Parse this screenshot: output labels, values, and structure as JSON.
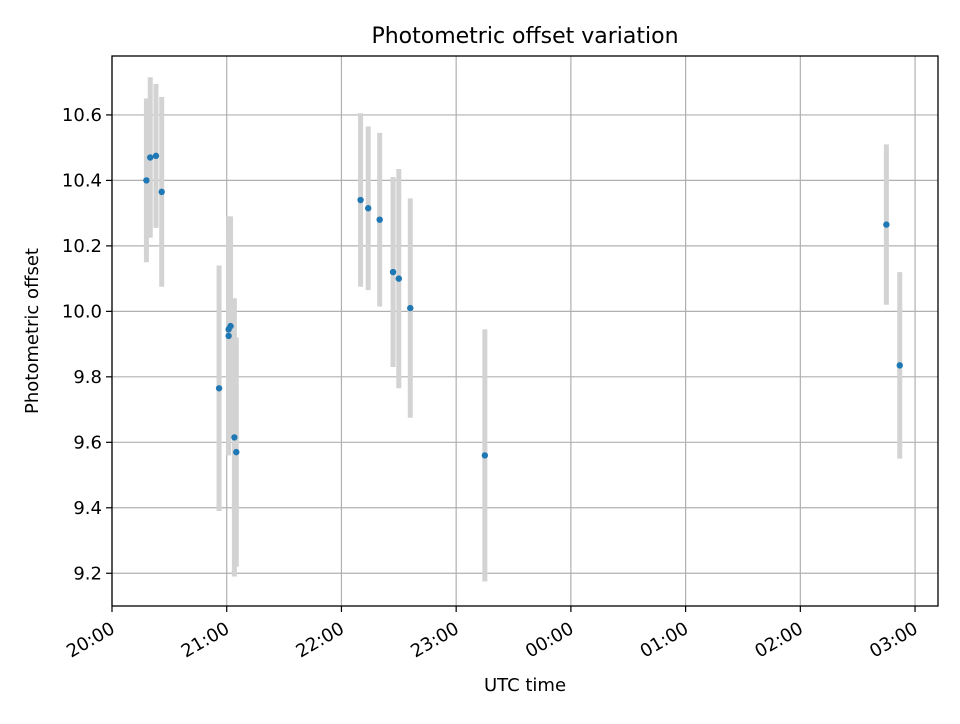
{
  "chart_data": {
    "type": "scatter",
    "title": "Photometric offset variation",
    "xlabel": "UTC time",
    "ylabel": "Photometric offset",
    "xlim": [
      "20:00",
      "03:12"
    ],
    "ylim": [
      9.1,
      10.78
    ],
    "grid": true,
    "x_ticks": [
      "20:00",
      "21:00",
      "22:00",
      "23:00",
      "00:00",
      "01:00",
      "02:00",
      "03:00"
    ],
    "y_ticks": [
      "9.2",
      "9.4",
      "9.6",
      "9.8",
      "10.0",
      "10.2",
      "10.4",
      "10.6"
    ],
    "point_color": "#1f77b4",
    "errorbar_color": "#d3d3d3",
    "points": [
      {
        "t": "20:18",
        "y": 10.4,
        "err": 0.25
      },
      {
        "t": "20:20",
        "y": 10.47,
        "err": 0.245
      },
      {
        "t": "20:23",
        "y": 10.475,
        "err": 0.22
      },
      {
        "t": "20:26",
        "y": 10.365,
        "err": 0.29
      },
      {
        "t": "20:56",
        "y": 9.765,
        "err": 0.375
      },
      {
        "t": "21:01",
        "y": 9.945,
        "err": 0.31
      },
      {
        "t": "21:01",
        "y": 9.925,
        "err": 0.365
      },
      {
        "t": "21:02",
        "y": 9.955,
        "err": 0.335
      },
      {
        "t": "21:04",
        "y": 9.615,
        "err": 0.425
      },
      {
        "t": "21:05",
        "y": 9.57,
        "err": 0.35
      },
      {
        "t": "22:10",
        "y": 10.34,
        "err": 0.265
      },
      {
        "t": "22:14",
        "y": 10.315,
        "err": 0.25
      },
      {
        "t": "22:20",
        "y": 10.28,
        "err": 0.265
      },
      {
        "t": "22:27",
        "y": 10.12,
        "err": 0.29
      },
      {
        "t": "22:30",
        "y": 10.1,
        "err": 0.335
      },
      {
        "t": "22:36",
        "y": 10.01,
        "err": 0.335
      },
      {
        "t": "23:15",
        "y": 9.56,
        "err": 0.385
      },
      {
        "t": "02:45",
        "y": 10.265,
        "err": 0.245
      },
      {
        "t": "02:52",
        "y": 9.835,
        "err": 0.285
      }
    ]
  }
}
